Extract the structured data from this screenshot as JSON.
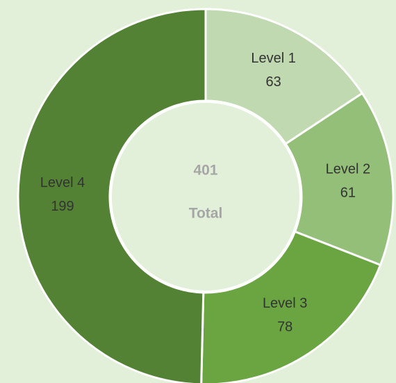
{
  "chart_data": {
    "type": "donut",
    "categories": [
      "Level 1",
      "Level 2",
      "Level 3",
      "Level 4"
    ],
    "values": [
      63,
      61,
      78,
      199
    ],
    "colors": [
      "#c0d9b0",
      "#93bf78",
      "#6aa542",
      "#548235"
    ],
    "center_value": 401,
    "center_label": "Total"
  }
}
